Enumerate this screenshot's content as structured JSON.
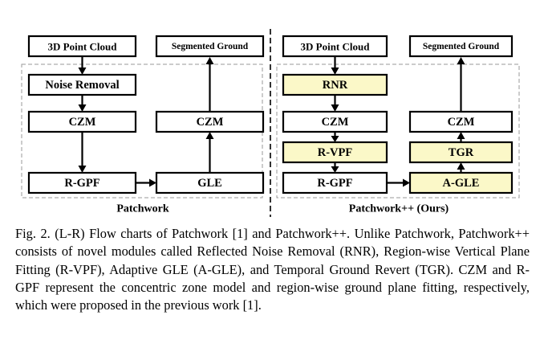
{
  "left_chart": {
    "title": "Patchwork",
    "boxes": {
      "input": "3D Point Cloud",
      "output": "Segmented Ground",
      "noise_removal": "Noise Removal",
      "czm_left": "CZM",
      "rgpf": "R-GPF",
      "gle": "GLE",
      "czm_right": "CZM"
    }
  },
  "right_chart": {
    "title": "Patchwork++ (Ours)",
    "boxes": {
      "input": "3D Point Cloud",
      "output": "Segmented Ground",
      "rnr": "RNR",
      "czm_left": "CZM",
      "rvpf": "R-VPF",
      "rgpf": "R-GPF",
      "agle": "A-GLE",
      "tgr": "TGR",
      "czm_right": "CZM"
    }
  },
  "colors": {
    "highlight_fill": "#fbf8c8",
    "box_stroke": "#000000",
    "dashed_frame": "#9a9a9a"
  },
  "caption": {
    "label": "Fig. 2.",
    "text": "(L-R) Flow charts of Patchwork [1] and Patchwork++. Unlike Patchwork, Patchwork++ consists of novel modules called Reflected Noise Removal (RNR), Region-wise Vertical Plane Fitting (R-VPF), Adaptive GLE (A-GLE), and Temporal Ground Revert (TGR). CZM and R-GPF represent the concentric zone model and region-wise ground plane fitting, respectively, which were proposed in the previous work [1]."
  }
}
